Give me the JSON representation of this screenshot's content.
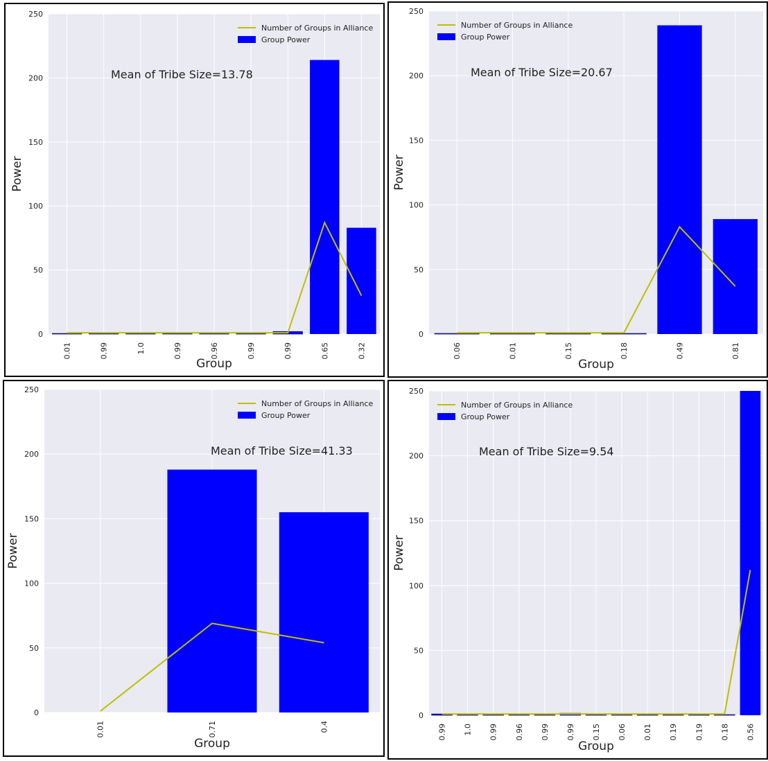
{
  "legend": {
    "line_label": "Number of Groups in Alliance",
    "bar_label": "Group Power"
  },
  "colors": {
    "plot_bg": "#eaeaf2",
    "grid": "#ffffff",
    "bar": "#0000ff",
    "line": "#bfbf00"
  },
  "chart_data": [
    {
      "type": "bar",
      "xlabel": "Group",
      "ylabel": "Power",
      "ylim": [
        0,
        250
      ],
      "yticks": [
        0,
        50,
        100,
        150,
        200,
        250
      ],
      "annotation": "Mean of Tribe Size=13.78",
      "legend_position": "top-right",
      "grid": true,
      "categories": [
        "0.01",
        "0.99",
        "1.0",
        "0.99",
        "0.96",
        "0.99",
        "0.99",
        "0.65",
        "0.32"
      ],
      "series": [
        {
          "name": "Group Power",
          "type": "bar",
          "values": [
            0.5,
            1,
            1,
            1,
            1,
            1,
            2,
            214,
            83
          ]
        },
        {
          "name": "Number of Groups in Alliance",
          "type": "line",
          "values": [
            1,
            1,
            1,
            1,
            1,
            1,
            1,
            87,
            30
          ]
        }
      ]
    },
    {
      "type": "bar",
      "xlabel": "Group",
      "ylabel": "Power",
      "ylim": [
        0,
        250
      ],
      "yticks": [
        0,
        50,
        100,
        150,
        200,
        250
      ],
      "annotation": "Mean of Tribe Size=20.67",
      "legend_position": "top-left",
      "grid": true,
      "categories": [
        "0.06",
        "0.01",
        "0.15",
        "0.18",
        "0.49",
        "0.81"
      ],
      "series": [
        {
          "name": "Group Power",
          "type": "bar",
          "values": [
            0.5,
            0.5,
            0.5,
            0.5,
            239,
            89
          ]
        },
        {
          "name": "Number of Groups in Alliance",
          "type": "line",
          "values": [
            1,
            1,
            1,
            1,
            83,
            37
          ]
        }
      ]
    },
    {
      "type": "bar",
      "xlabel": "Group",
      "ylabel": "Power",
      "ylim": [
        0,
        250
      ],
      "yticks": [
        0,
        50,
        100,
        150,
        200,
        250
      ],
      "annotation": "Mean of Tribe Size=41.33",
      "legend_position": "top-right",
      "grid": true,
      "categories": [
        "0.01",
        "0.71",
        "0.4"
      ],
      "series": [
        {
          "name": "Group Power",
          "type": "bar",
          "values": [
            0,
            188,
            155
          ]
        },
        {
          "name": "Number of Groups in Alliance",
          "type": "line",
          "values": [
            1,
            69,
            54
          ]
        }
      ]
    },
    {
      "type": "bar",
      "xlabel": "Group",
      "ylabel": "Power",
      "ylim": [
        0,
        250
      ],
      "yticks": [
        0,
        50,
        100,
        150,
        200,
        250
      ],
      "annotation": "Mean of Tribe Size=9.54",
      "legend_position": "top-left",
      "grid": true,
      "categories": [
        "0.99",
        "1.0",
        "0.99",
        "0.96",
        "0.99",
        "0.99",
        "0.15",
        "0.06",
        "0.01",
        "0.19",
        "0.19",
        "0.18",
        "0.56"
      ],
      "series": [
        {
          "name": "Group Power",
          "type": "bar",
          "values": [
            1,
            0.5,
            0.5,
            0.5,
            0.5,
            1.5,
            0.5,
            0.5,
            0.5,
            0.5,
            0.5,
            0.5,
            250
          ]
        },
        {
          "name": "Number of Groups in Alliance",
          "type": "line",
          "values": [
            1,
            1,
            1,
            1,
            1,
            1,
            1,
            1,
            1,
            1,
            1,
            1,
            112
          ]
        }
      ]
    }
  ]
}
